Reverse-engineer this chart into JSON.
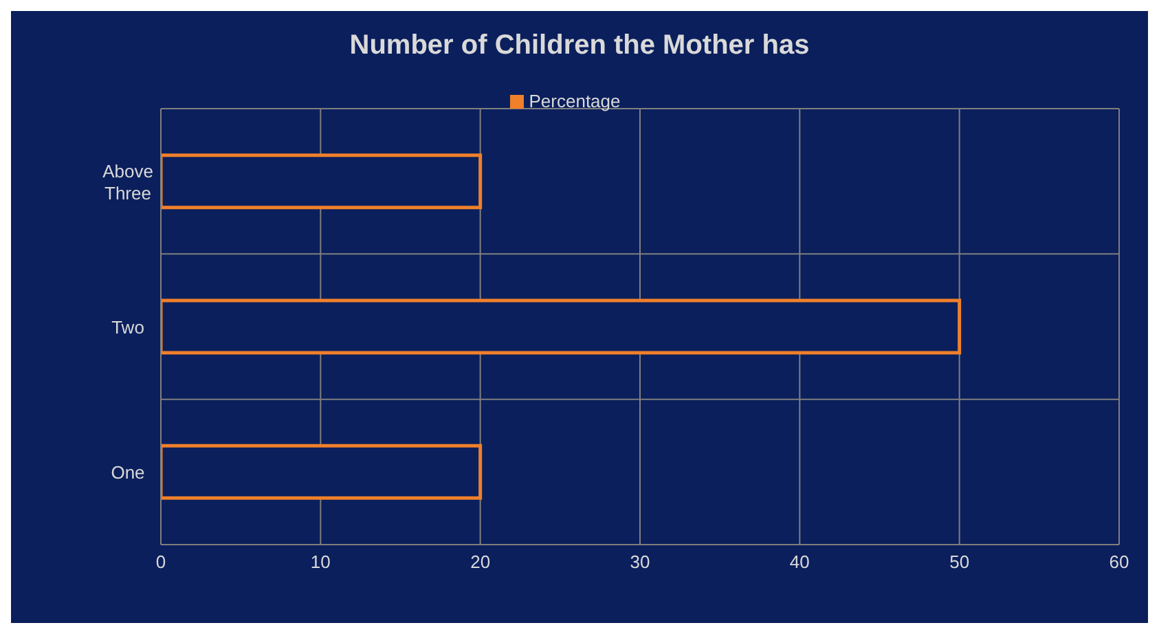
{
  "chart_data": {
    "type": "bar",
    "orientation": "horizontal",
    "title": "Number of Children the Mother has",
    "categories": [
      "Above Three",
      "Two",
      "One"
    ],
    "series": [
      {
        "name": "Percentage",
        "color": "#f0802a",
        "values": [
          20,
          50,
          20
        ]
      }
    ],
    "xlim": [
      0,
      60
    ],
    "xticks": [
      0,
      10,
      20,
      30,
      40,
      50,
      60
    ],
    "grid": true,
    "legend": "top"
  }
}
